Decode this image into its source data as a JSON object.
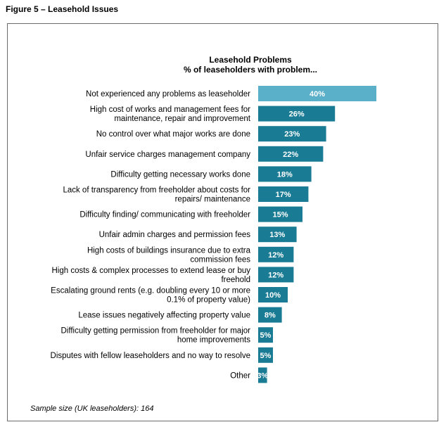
{
  "figure": {
    "caption": "Figure 5 – Leasehold Issues"
  },
  "footer": {
    "sample_note": "Sample size (UK leaseholders): 164"
  },
  "colors": {
    "highlight": "#5aafc9",
    "bar": "#1a7b94",
    "label_text": "#ffffff"
  },
  "chart_data": {
    "type": "bar",
    "orientation": "horizontal",
    "title": "Leasehold Problems",
    "subtitle": "% of leaseholders with problem...",
    "xlabel": "",
    "ylabel": "",
    "xlim": [
      0,
      40
    ],
    "grid": false,
    "legend": "none",
    "value_suffix": "%",
    "categories": [
      [
        "Not experienced any problems as leaseholder"
      ],
      [
        "High cost of works and management fees for",
        "maintenance, repair and improvement"
      ],
      [
        "No control over what major works are done"
      ],
      [
        "Unfair service charges management company"
      ],
      [
        "Difficulty getting necessary works done"
      ],
      [
        "Lack of transparency from freeholder about costs for",
        "repairs/ maintenance"
      ],
      [
        "Difficulty finding/ communicating with freeholder"
      ],
      [
        "Unfair admin charges and permission fees"
      ],
      [
        "High costs of buildings insurance due to extra",
        "commission fees"
      ],
      [
        "High costs & complex processes to extend lease or buy",
        "freehold"
      ],
      [
        "Escalating ground rents (e.g. doubling every 10 or more",
        "0.1% of property value)"
      ],
      [
        "Lease issues negatively affecting property value"
      ],
      [
        "Difficulty getting permission from freeholder for major",
        "home improvements"
      ],
      [
        "Disputes with fellow leaseholders and no way to resolve"
      ],
      [
        "Other"
      ]
    ],
    "values": [
      40,
      26,
      23,
      22,
      18,
      17,
      15,
      13,
      12,
      12,
      10,
      8,
      5,
      5,
      3
    ],
    "highlight_index": 0
  }
}
